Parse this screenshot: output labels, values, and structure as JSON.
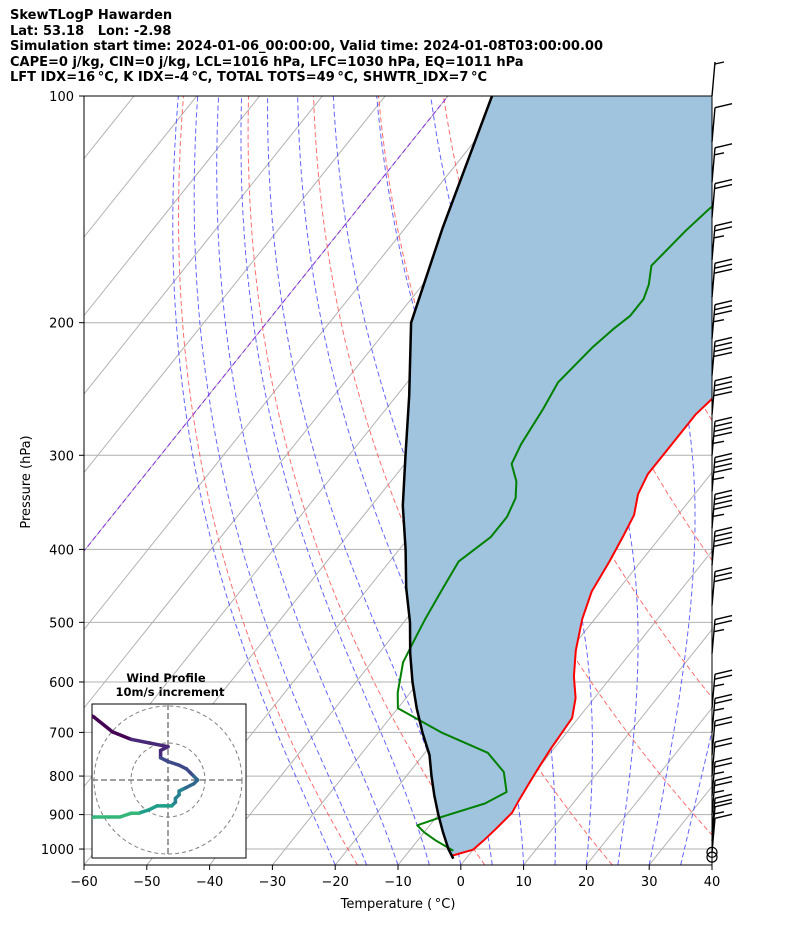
{
  "title_lines": [
    "SkewTLogP Hawarden",
    "Lat: 53.18   Lon: -2.98",
    "Simulation start time: 2024-01-06_00:00:00, Valid time: 2024-01-08T03:00:00.00",
    "CAPE=0 j/kg, CIN=0 j/kg, LCL=1016 hPa, LFC=1030 hPa, EQ=1011 hPa",
    "LFT IDX=16 °C, K IDX=-4 °C, TOTAL TOTS=49 °C, SHWTR_IDX=7 °C"
  ],
  "chart_data": {
    "type": "line",
    "xlabel": "Temperature ( °C)",
    "ylabel": "Pressure (hPa)",
    "xlim": [
      -60,
      40
    ],
    "ylim": [
      1050,
      100
    ],
    "y_scale": "log",
    "x_ticks": [
      -60,
      -50,
      -40,
      -30,
      -20,
      -10,
      0,
      10,
      20,
      30,
      40
    ],
    "x_tick_labels": [
      "−60",
      "−50",
      "−40",
      "−30",
      "−20",
      "−10",
      "0",
      "10",
      "20",
      "30",
      "40"
    ],
    "y_ticks": [
      1000,
      900,
      800,
      700,
      600,
      500,
      400,
      300,
      200,
      100
    ],
    "y_tick_labels": [
      "1000",
      "900",
      "800",
      "700",
      "600",
      "500",
      "400",
      "300",
      "200",
      "100"
    ],
    "grid": true,
    "skew": true,
    "series": [
      {
        "role": "temperature",
        "color": "#ff0000",
        "points": [
          [
            -2.5,
            1020
          ],
          [
            0,
            1002
          ],
          [
            0.5,
            975
          ],
          [
            1,
            940
          ],
          [
            1.5,
            895
          ],
          [
            1,
            860
          ],
          [
            0.5,
            820
          ],
          [
            0,
            780
          ],
          [
            -0.5,
            735
          ],
          [
            -1,
            670
          ],
          [
            -3,
            630
          ],
          [
            -6,
            590
          ],
          [
            -9,
            545
          ],
          [
            -12,
            495
          ],
          [
            -14,
            455
          ],
          [
            -15,
            415
          ],
          [
            -16,
            385
          ],
          [
            -17,
            360
          ],
          [
            -19,
            338
          ],
          [
            -20,
            318
          ],
          [
            -20,
            290
          ],
          [
            -20,
            265
          ],
          [
            -19,
            245
          ],
          [
            -17,
            220
          ],
          [
            -16,
            202
          ],
          [
            -15,
            192
          ],
          [
            -15,
            182
          ],
          [
            -14,
            171
          ],
          [
            -14,
            161
          ],
          [
            -13,
            151
          ],
          [
            -13,
            141
          ],
          [
            -12,
            135
          ],
          [
            -11,
            125
          ],
          [
            -10,
            116
          ],
          [
            -8,
            106
          ],
          [
            -6,
            100
          ]
        ]
      },
      {
        "role": "dewpoint",
        "color": "#008000",
        "points": [
          [
            -3,
            1005
          ],
          [
            -7,
            975
          ],
          [
            -10,
            950
          ],
          [
            -12,
            930
          ],
          [
            -9,
            905
          ],
          [
            -4,
            870
          ],
          [
            -2,
            840
          ],
          [
            -5,
            790
          ],
          [
            -10,
            745
          ],
          [
            -20,
            700
          ],
          [
            -30,
            650
          ],
          [
            -32,
            620
          ],
          [
            -35,
            565
          ],
          [
            -36,
            530
          ],
          [
            -37,
            495
          ],
          [
            -38,
            455
          ],
          [
            -39,
            415
          ],
          [
            -37,
            385
          ],
          [
            -37,
            362
          ],
          [
            -38,
            342
          ],
          [
            -40,
            325
          ],
          [
            -43,
            308
          ],
          [
            -44,
            290
          ],
          [
            -45,
            260
          ],
          [
            -46,
            240
          ],
          [
            -45,
            216
          ],
          [
            -44,
            204
          ],
          [
            -43,
            196
          ],
          [
            -43,
            186
          ],
          [
            -44,
            178
          ],
          [
            -46,
            168
          ],
          [
            -45,
            151
          ],
          [
            -44,
            141
          ],
          [
            -42,
            131
          ],
          [
            -41,
            118
          ],
          [
            -40,
            100
          ]
        ]
      },
      {
        "role": "parcel",
        "color": "#000000",
        "points": [
          [
            -2,
            1030
          ],
          [
            -4,
            1000
          ],
          [
            -7,
            950
          ],
          [
            -10,
            900
          ],
          [
            -13,
            850
          ],
          [
            -16,
            800
          ],
          [
            -19,
            750
          ],
          [
            -23,
            700
          ],
          [
            -27,
            650
          ],
          [
            -31,
            600
          ],
          [
            -35,
            550
          ],
          [
            -39,
            500
          ],
          [
            -44,
            450
          ],
          [
            -49,
            400
          ],
          [
            -55,
            350
          ],
          [
            -61,
            300
          ],
          [
            -68,
            250
          ],
          [
            -77,
            200
          ],
          [
            -84,
            150
          ],
          [
            -93,
            100
          ]
        ]
      }
    ],
    "fill_between": {
      "series": [
        "temperature",
        "parcel"
      ],
      "color": "#a0c4de"
    },
    "wind_barbs": [
      {
        "p": 1010,
        "sknt": 10
      },
      {
        "p": 975,
        "sknt": 15
      },
      {
        "p": 950,
        "sknt": 20
      },
      {
        "p": 900,
        "sknt": 25
      },
      {
        "p": 850,
        "sknt": 25
      },
      {
        "p": 800,
        "sknt": 20
      },
      {
        "p": 750,
        "sknt": 20
      },
      {
        "p": 700,
        "sknt": 25
      },
      {
        "p": 650,
        "sknt": 25
      },
      {
        "p": 550,
        "sknt": 25
      },
      {
        "p": 475,
        "sknt": 30
      },
      {
        "p": 420,
        "sknt": 40
      },
      {
        "p": 375,
        "sknt": 45
      },
      {
        "p": 335,
        "sknt": 45
      },
      {
        "p": 300,
        "sknt": 45
      },
      {
        "p": 265,
        "sknt": 40
      },
      {
        "p": 235,
        "sknt": 40
      },
      {
        "p": 210,
        "sknt": 35
      },
      {
        "p": 185,
        "sknt": 30
      },
      {
        "p": 165,
        "sknt": 25
      },
      {
        "p": 145,
        "sknt": 20
      },
      {
        "p": 130,
        "sknt": 15
      },
      {
        "p": 115,
        "sknt": 10
      },
      {
        "p": 100,
        "sknt": 5
      }
    ],
    "inset": {
      "title": "Wind Profile",
      "subtitle": "10m/s increment",
      "hodograph": [
        [
          -37,
          -19
        ],
        [
          -31,
          -20
        ],
        [
          -25,
          -20
        ],
        [
          -20,
          -17
        ],
        [
          -15,
          -13
        ],
        [
          -10,
          -11
        ],
        [
          -5,
          -10
        ],
        [
          0,
          -9
        ],
        [
          -2,
          -8
        ],
        [
          -2,
          -6
        ],
        [
          0,
          -5
        ],
        [
          3,
          -4
        ],
        [
          5,
          -3
        ],
        [
          6,
          -2
        ],
        [
          7,
          -1
        ],
        [
          8,
          0
        ],
        [
          7,
          1
        ],
        [
          5,
          2
        ],
        [
          4,
          2.5
        ],
        [
          3,
          3
        ],
        [
          3,
          4
        ],
        [
          2,
          5
        ],
        [
          2,
          6
        ],
        [
          1,
          7
        ],
        [
          -1,
          7
        ],
        [
          -3,
          7
        ],
        [
          -5,
          8
        ],
        [
          -8,
          9
        ],
        [
          -10,
          9
        ],
        [
          -13,
          10
        ],
        [
          -16,
          10
        ],
        [
          -20,
          10
        ],
        [
          -23,
          11
        ],
        [
          -26,
          11
        ],
        [
          -28,
          12
        ],
        [
          -29,
          13
        ],
        [
          -29,
          16
        ],
        [
          -29,
          20
        ],
        [
          -32,
          22
        ],
        [
          -36,
          25
        ],
        [
          -40,
          27
        ]
      ]
    }
  }
}
